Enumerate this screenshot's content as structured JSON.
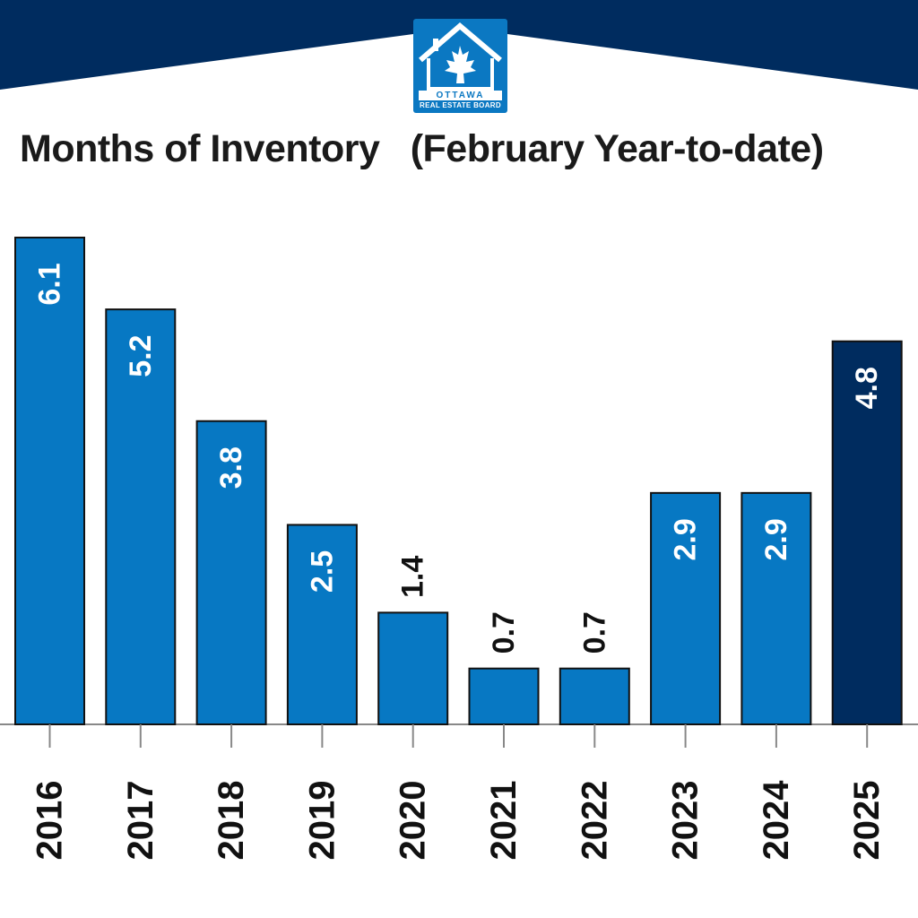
{
  "logo": {
    "name": "OTTAWA",
    "subtitle": "REAL ESTATE BOARD"
  },
  "colors": {
    "header_navy": "#002c5f",
    "bar_blue": "#0778c3",
    "bar_highlight": "#002c5f",
    "axis": "#888888"
  },
  "chart_data": {
    "type": "bar",
    "title": "Months of Inventory   (February Year-to-date)",
    "categories": [
      "2016",
      "2017",
      "2018",
      "2019",
      "2020",
      "2021",
      "2022",
      "2023",
      "2024",
      "2025"
    ],
    "values": [
      6.1,
      5.2,
      3.8,
      2.5,
      1.4,
      0.7,
      0.7,
      2.9,
      2.9,
      4.8
    ],
    "highlight": "2025",
    "ylim": [
      0,
      6.1
    ],
    "grid": false,
    "legend": "none"
  }
}
